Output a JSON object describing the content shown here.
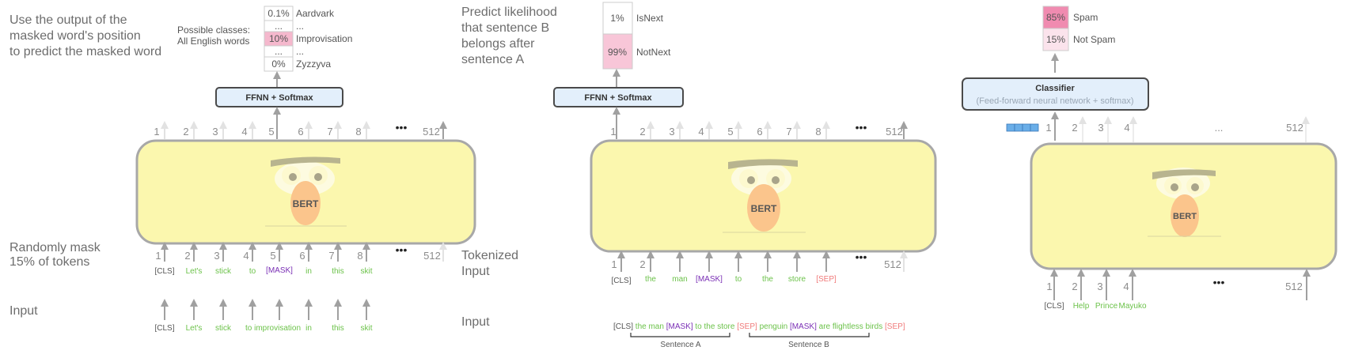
{
  "panel1": {
    "caption_lines": [
      "Use the output of the",
      "masked word's position",
      "to predict the masked word"
    ],
    "classes_label_lines": [
      "Possible classes:",
      "All English words"
    ],
    "probs": [
      {
        "pct": "0.1%",
        "word": "Aardvark",
        "value": 0.001
      },
      {
        "pct": "...",
        "word": "...",
        "value": 0
      },
      {
        "pct": "10%",
        "word": "Improvisation",
        "value": 0.1
      },
      {
        "pct": "...",
        "word": "...",
        "value": 0
      },
      {
        "pct": "0%",
        "word": "Zyzzyva",
        "value": 0
      }
    ],
    "ffnn_label": "FFNN + Softmax",
    "model_label": "BERT",
    "top_positions": [
      "1",
      "2",
      "3",
      "4",
      "5",
      "6",
      "7",
      "8",
      "512"
    ],
    "bottom_positions": [
      "1",
      "2",
      "3",
      "4",
      "5",
      "6",
      "7",
      "8",
      "512"
    ],
    "ellipsis": "•••",
    "mask_caption_lines": [
      "Randomly mask",
      "15% of tokens"
    ],
    "masked_tokens": [
      "[CLS]",
      "Let's",
      "stick",
      "to",
      "[MASK]",
      "in",
      "this",
      "skit"
    ],
    "input_label": "Input",
    "input_tokens": [
      "[CLS]",
      "Let's",
      "stick",
      "to improvisation",
      "in",
      "this",
      "skit"
    ]
  },
  "panel2": {
    "caption_lines": [
      "Predict likelihood",
      "that sentence B",
      "belongs after",
      "sentence A"
    ],
    "probs": [
      {
        "pct": "1%",
        "word": "IsNext",
        "value": 0.01
      },
      {
        "pct": "99%",
        "word": "NotNext",
        "value": 0.99
      }
    ],
    "ffnn_label": "FFNN + Softmax",
    "model_label": "BERT",
    "top_positions": [
      "1",
      "2",
      "3",
      "4",
      "5",
      "6",
      "7",
      "8",
      "512"
    ],
    "bottom_positions": [
      "1",
      "2",
      "",
      "",
      "",
      "",
      "",
      "",
      "512"
    ],
    "ellipsis": "•••",
    "tokenized_label_lines": [
      "Tokenized",
      "Input"
    ],
    "tokens": [
      "[CLS]",
      "the",
      "man",
      "[MASK]",
      "to",
      "the",
      "store",
      "[SEP]"
    ],
    "input_label": "Input",
    "sentence_parts": [
      {
        "text": "[CLS]",
        "kind": "special"
      },
      {
        "text": " the man ",
        "kind": "word"
      },
      {
        "text": "[MASK]",
        "kind": "mask"
      },
      {
        "text": " to the store ",
        "kind": "word"
      },
      {
        "text": "[SEP]",
        "kind": "sep"
      },
      {
        "text": " penguin ",
        "kind": "word"
      },
      {
        "text": "[MASK]",
        "kind": "mask"
      },
      {
        "text": " are flightless birds ",
        "kind": "word"
      },
      {
        "text": "[SEP]",
        "kind": "sep"
      }
    ],
    "sentence_a_label": "Sentence A",
    "sentence_b_label": "Sentence B"
  },
  "panel3": {
    "probs": [
      {
        "pct": "85%",
        "word": "Spam",
        "value": 0.85
      },
      {
        "pct": "15%",
        "word": "Not Spam",
        "value": 0.15
      }
    ],
    "classifier_title": "Classifier",
    "classifier_subtitle": "(Feed-forward neural network + softmax)",
    "model_label": "BERT",
    "top_positions": [
      "1",
      "2",
      "3",
      "4",
      "...",
      "512"
    ],
    "bottom_positions": [
      "1",
      "2",
      "3",
      "4",
      "512"
    ],
    "ellipsis": "•••",
    "tokens": [
      "[CLS]",
      "Help",
      "Prince",
      "Mayuko"
    ]
  },
  "colors": {
    "body_fill": "#fbf7ae",
    "body_stroke": "#a8a8a8",
    "box_fill": "#e3effb",
    "box_stroke": "#4a4a4a",
    "word_green": "#6cc24a",
    "mask_purple": "#7a2fb5",
    "sep_red": "#f07a7a",
    "prob_pink": "#f08bb0",
    "vector_blue": "#6aaee8"
  }
}
